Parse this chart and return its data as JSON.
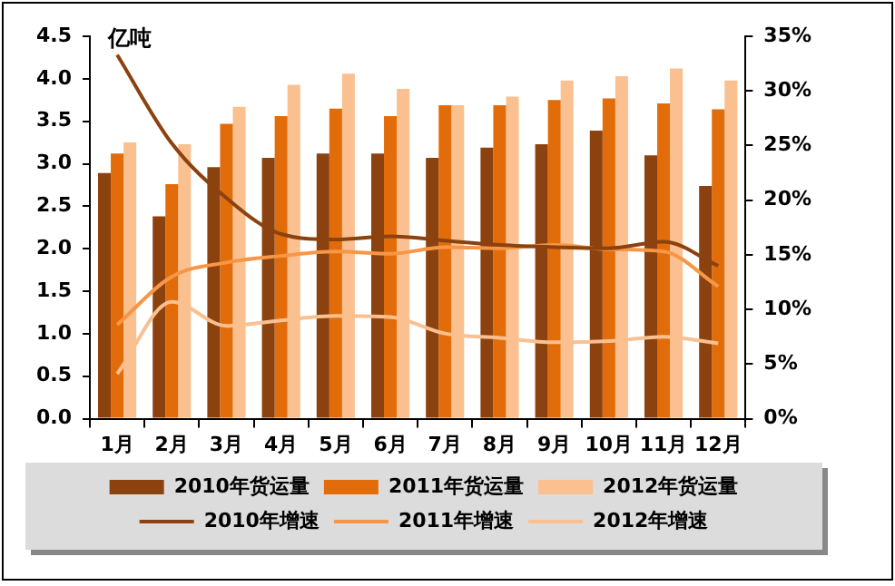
{
  "chart_data": {
    "type": "bar",
    "ylabel": "亿吨",
    "categories": [
      "1月",
      "2月",
      "3月",
      "4月",
      "5月",
      "6月",
      "7月",
      "8月",
      "9月",
      "10月",
      "11月",
      "12月"
    ],
    "series": [
      {
        "name": "2010年货运量",
        "color": "#8b420f",
        "values": [
          2.89,
          2.38,
          2.96,
          3.07,
          3.12,
          3.12,
          3.07,
          3.19,
          3.23,
          3.39,
          3.1,
          2.74
        ]
      },
      {
        "name": "2011年货运量",
        "color": "#e36c0a",
        "values": [
          3.12,
          2.76,
          3.47,
          3.56,
          3.65,
          3.56,
          3.69,
          3.69,
          3.75,
          3.77,
          3.71,
          3.64
        ]
      },
      {
        "name": "2012年货运量",
        "color": "#fac090",
        "values": [
          3.25,
          3.23,
          3.67,
          3.93,
          4.06,
          3.88,
          3.69,
          3.79,
          3.98,
          4.03,
          4.12,
          3.98
        ]
      },
      {
        "name": "2010年增速",
        "type": "line",
        "axis": "y2",
        "color": "#8b420f",
        "values": [
          33.3,
          25.2,
          20.2,
          16.9,
          16.4,
          16.7,
          16.3,
          15.9,
          15.7,
          15.6,
          16.2,
          14.0
        ]
      },
      {
        "name": "2011年增速",
        "type": "line",
        "axis": "y2",
        "color": "#f79646",
        "values": [
          8.6,
          13.0,
          14.3,
          14.9,
          15.3,
          15.1,
          15.7,
          15.6,
          15.9,
          15.5,
          15.3,
          12.1
        ]
      },
      {
        "name": "2012年增速",
        "type": "line",
        "axis": "y2",
        "color": "#fac090",
        "values": [
          4.1,
          10.7,
          8.5,
          9.0,
          9.4,
          9.3,
          7.8,
          7.4,
          7.0,
          7.1,
          7.5,
          6.9
        ]
      }
    ],
    "ylim": [
      0,
      4.5
    ],
    "yticks": [
      {
        "value": 0,
        "label": "0.0"
      },
      {
        "value": 0.5,
        "label": "0.5"
      },
      {
        "value": 1,
        "label": "1.0"
      },
      {
        "value": 1.5,
        "label": "1.5"
      },
      {
        "value": 2,
        "label": "2.0"
      },
      {
        "value": 2.5,
        "label": "2.5"
      },
      {
        "value": 3,
        "label": "3.0"
      },
      {
        "value": 3.5,
        "label": "3.5"
      },
      {
        "value": 4,
        "label": "4.0"
      },
      {
        "value": 4.5,
        "label": "4.5"
      }
    ],
    "y2lim": [
      0,
      35
    ],
    "y2ticks": [
      {
        "value": 0,
        "label": "0%"
      },
      {
        "value": 5,
        "label": "5%"
      },
      {
        "value": 10,
        "label": "10%"
      },
      {
        "value": 15,
        "label": "15%"
      },
      {
        "value": 20,
        "label": "20%"
      },
      {
        "value": 25,
        "label": "25%"
      },
      {
        "value": 30,
        "label": "30%"
      },
      {
        "value": 35,
        "label": "35%"
      }
    ],
    "grid": false,
    "legend": "bottom",
    "marker": "none",
    "line_style": "solid"
  }
}
